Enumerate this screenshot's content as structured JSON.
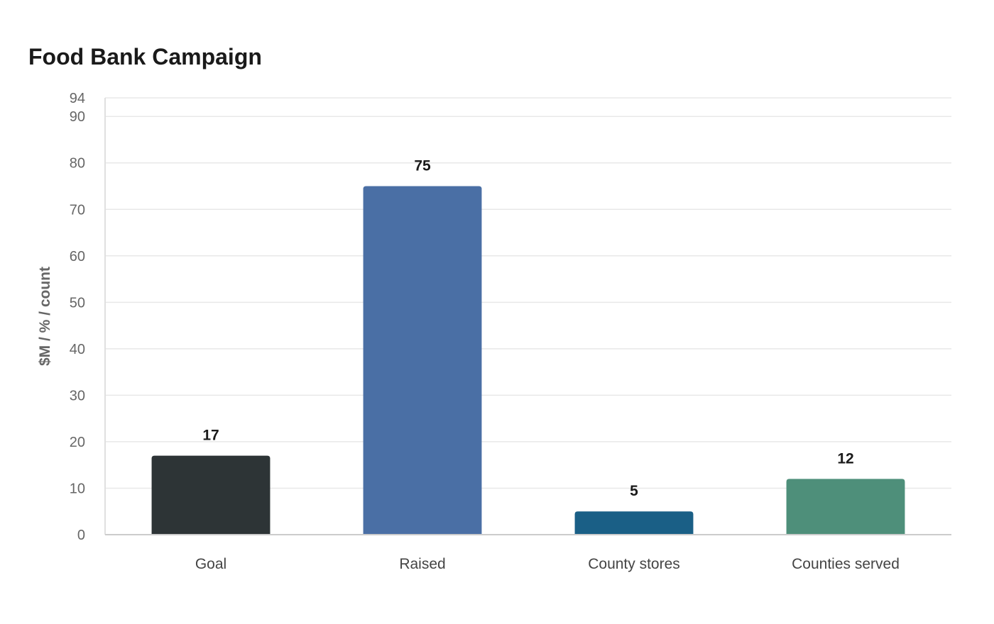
{
  "chart_data": {
    "type": "bar",
    "title": "Food Bank Campaign",
    "xlabel": "",
    "ylabel": "$M / % / count",
    "categories": [
      "Goal",
      "Raised",
      "County stores",
      "Counties served"
    ],
    "values": [
      17,
      75,
      5,
      12
    ],
    "colors": [
      "#2d3436",
      "#4a6fa5",
      "#1a5f86",
      "#4e8f7a"
    ],
    "ylim": [
      0,
      94
    ],
    "yticks": [
      0,
      10,
      20,
      30,
      40,
      50,
      60,
      70,
      80,
      90,
      94
    ],
    "grid": true,
    "data_labels": true
  }
}
